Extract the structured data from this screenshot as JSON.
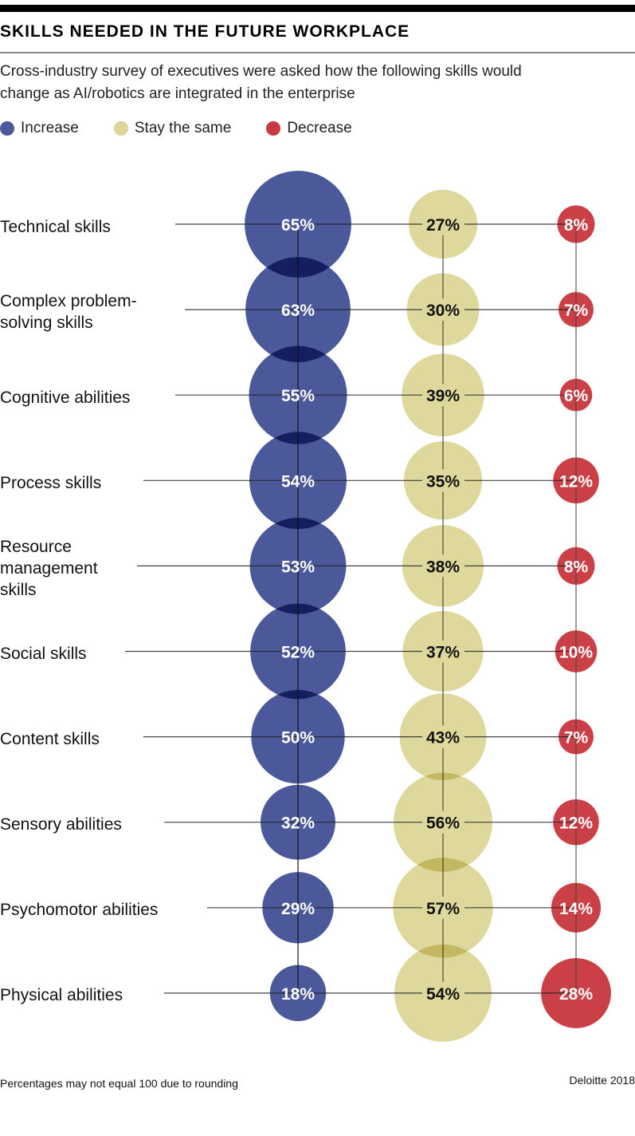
{
  "header": {
    "title": "SKILLS NEEDED IN THE FUTURE WORKPLACE",
    "subtitle": "Cross-industry survey of executives were asked how the following skills would change as AI/robotics are integrated in the enterprise"
  },
  "colors": {
    "increase": "#3d4c93",
    "stay": "#ddd596",
    "decrease": "#c93a40"
  },
  "legend": [
    {
      "key": "increase",
      "label": "Increase"
    },
    {
      "key": "stay",
      "label": "Stay the same"
    },
    {
      "key": "decrease",
      "label": "Decrease"
    }
  ],
  "footer": {
    "note": "Percentages may not equal 100 due to rounding",
    "source": "Deloitte 2018"
  },
  "chart_data": {
    "type": "bubble-table",
    "title": "SKILLS NEEDED IN THE FUTURE WORKPLACE",
    "subtitle": "Cross-industry survey of executives were asked how the following skills would change as AI/robotics are integrated in the enterprise",
    "legend_position": "top-left",
    "unit": "%",
    "categories": [
      "Technical skills",
      "Complex problem-solving skills",
      "Cognitive abilities",
      "Process skills",
      "Resource management skills",
      "Social skills",
      "Content skills",
      "Sensory abilities",
      "Psychomotor abilities",
      "Physical abilities"
    ],
    "category_lines": [
      [
        "Technical skills"
      ],
      [
        "Complex problem-",
        "solving skills"
      ],
      [
        "Cognitive abilities"
      ],
      [
        "Process skills"
      ],
      [
        "Resource",
        "management",
        "skills"
      ],
      [
        "Social skills"
      ],
      [
        "Content skills"
      ],
      [
        "Sensory abilities"
      ],
      [
        "Psychomotor abilities"
      ],
      [
        "Physical abilities"
      ]
    ],
    "series": [
      {
        "name": "Increase",
        "key": "increase",
        "values": [
          65,
          63,
          55,
          54,
          53,
          52,
          50,
          32,
          29,
          18
        ]
      },
      {
        "name": "Stay the same",
        "key": "stay",
        "values": [
          27,
          30,
          39,
          35,
          38,
          37,
          43,
          56,
          57,
          54
        ]
      },
      {
        "name": "Decrease",
        "key": "decrease",
        "values": [
          8,
          7,
          6,
          12,
          8,
          10,
          7,
          12,
          14,
          28
        ]
      }
    ]
  }
}
